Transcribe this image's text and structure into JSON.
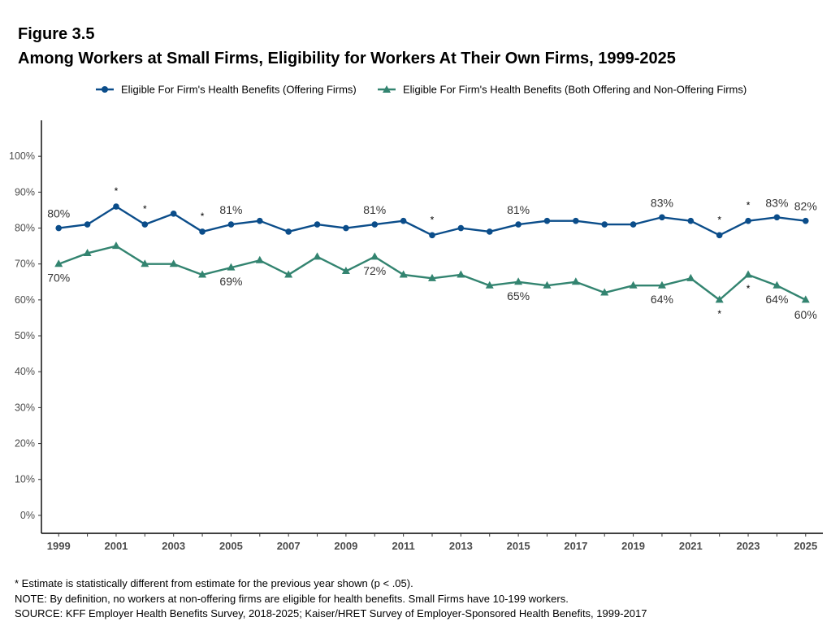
{
  "figure": {
    "number": "Figure 3.5",
    "title": "Among Workers at Small Firms, Eligibility for Workers At Their Own Firms, 1999-2025"
  },
  "chart_data": {
    "type": "line",
    "x": [
      1999,
      2000,
      2001,
      2002,
      2003,
      2004,
      2005,
      2006,
      2007,
      2008,
      2009,
      2010,
      2011,
      2012,
      2013,
      2014,
      2015,
      2016,
      2017,
      2018,
      2019,
      2020,
      2021,
      2022,
      2023,
      2024,
      2025
    ],
    "x_tick_labels": [
      "1999",
      "2001",
      "2003",
      "2005",
      "2007",
      "2009",
      "2011",
      "2013",
      "2015",
      "2017",
      "2019",
      "2021",
      "2023",
      "2025"
    ],
    "y_tick_labels": [
      "0%",
      "10%",
      "20%",
      "30%",
      "40%",
      "50%",
      "60%",
      "70%",
      "80%",
      "90%",
      "100%"
    ],
    "ylim": [
      -5,
      110
    ],
    "xlim": [
      1998.4,
      2025.6
    ],
    "grid": false,
    "legend_position": "top",
    "series": [
      {
        "name": "Eligible For Firm's Health Benefits (Offering Firms)",
        "color": "#0b4d8a",
        "marker": "circle",
        "values": [
          80,
          81,
          86,
          81,
          84,
          79,
          81,
          82,
          79,
          81,
          80,
          81,
          82,
          78,
          80,
          79,
          81,
          82,
          82,
          81,
          81,
          83,
          82,
          78,
          82,
          83,
          82
        ],
        "significant_years": [
          2001,
          2002,
          2004,
          2012,
          2022,
          2023
        ],
        "data_labels": [
          {
            "x": 1999,
            "text": "80%"
          },
          {
            "x": 2005,
            "text": "81%"
          },
          {
            "x": 2010,
            "text": "81%"
          },
          {
            "x": 2015,
            "text": "81%"
          },
          {
            "x": 2020,
            "text": "83%"
          },
          {
            "x": 2024,
            "text": "83%"
          },
          {
            "x": 2025,
            "text": "82%"
          }
        ]
      },
      {
        "name": "Eligible For Firm's Health Benefits (Both Offering and Non-Offering Firms)",
        "color": "#338470",
        "marker": "triangle",
        "values": [
          70,
          73,
          75,
          70,
          70,
          67,
          69,
          71,
          67,
          72,
          68,
          72,
          67,
          66,
          67,
          64,
          65,
          64,
          65,
          62,
          64,
          64,
          66,
          60,
          67,
          64,
          60
        ],
        "significant_years": [
          2022,
          2023
        ],
        "data_labels": [
          {
            "x": 1999,
            "text": "70%"
          },
          {
            "x": 2005,
            "text": "69%"
          },
          {
            "x": 2010,
            "text": "72%"
          },
          {
            "x": 2015,
            "text": "65%"
          },
          {
            "x": 2020,
            "text": "64%"
          },
          {
            "x": 2024,
            "text": "64%"
          },
          {
            "x": 2025,
            "text": "60%"
          }
        ]
      }
    ],
    "significance_marker": "*"
  },
  "notes": {
    "asterisk": "* Estimate is statistically different from estimate for the previous year shown (p < .05).",
    "note": "NOTE: By definition, no workers at non-offering firms are eligible for health benefits. Small Firms have 10-199 workers.",
    "source": "SOURCE: KFF Employer Health Benefits Survey, 2018-2025; Kaiser/HRET Survey of Employer-Sponsored Health Benefits, 1999-2017"
  }
}
